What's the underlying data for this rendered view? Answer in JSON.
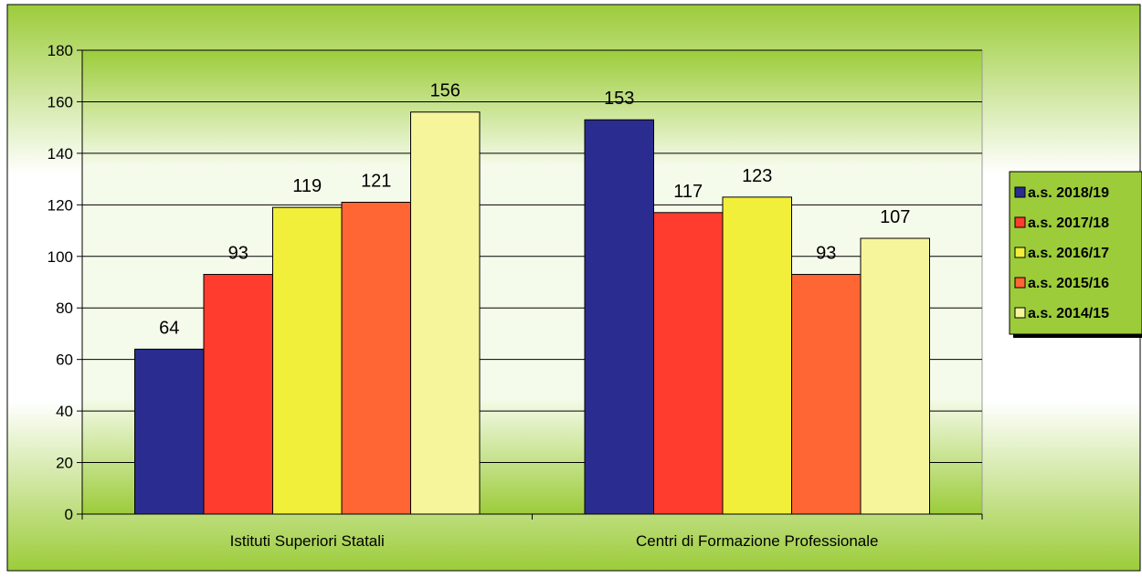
{
  "chart_data": {
    "type": "bar",
    "title": "",
    "xlabel": "",
    "ylabel": "",
    "categories": [
      "Istituti Superiori Statali",
      "Centri di Formazione Professionale"
    ],
    "ylim": [
      0,
      180
    ],
    "yticks": [
      0,
      20,
      40,
      60,
      80,
      100,
      120,
      140,
      160,
      180
    ],
    "grid": true,
    "legend_position": "right",
    "data_labels": true,
    "series": [
      {
        "name": "a.s. 2018/19",
        "values": [
          64,
          153
        ],
        "color": "#2a2d8f"
      },
      {
        "name": "a.s. 2017/18",
        "values": [
          93,
          117
        ],
        "color": "#ff3c2e"
      },
      {
        "name": "a.s. 2016/17",
        "values": [
          119,
          123
        ],
        "color": "#f2ef3a"
      },
      {
        "name": "a.s. 2015/16",
        "values": [
          121,
          93
        ],
        "color": "#ff6633"
      },
      {
        "name": "a.s. 2014/15",
        "values": [
          156,
          107
        ],
        "color": "#f6f59c"
      }
    ],
    "background": {
      "top": "#9ccc3a",
      "middle": "#ffffff",
      "bottom": "#9ccc3a"
    }
  }
}
